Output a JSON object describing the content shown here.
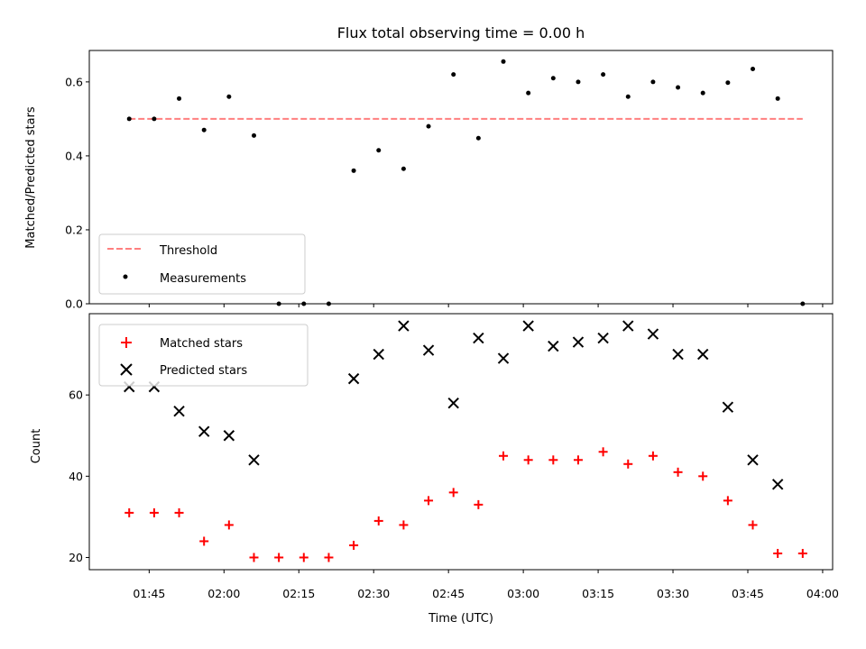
{
  "chart_data": [
    {
      "type": "scatter",
      "title": "Flux total observing time = 0.00 h",
      "xlabel": "",
      "ylabel": "Matched/Predicted stars",
      "ylim": [
        0,
        0.685
      ],
      "yticks": [
        0.0,
        0.2,
        0.4,
        0.6
      ],
      "yticklabels": [
        "0.0",
        "0.2",
        "0.4",
        "0.6"
      ],
      "x_range_minutes": [
        93,
        242
      ],
      "legend_position": "bottom-left",
      "threshold": {
        "name": "Threshold",
        "value": 0.5,
        "x_start": "01:41",
        "x_end": "03:56",
        "color": "#ff7f7f",
        "style": "dashed"
      },
      "series": [
        {
          "name": "Measurements",
          "color": "#000000",
          "marker": "dot",
          "x": [
            "01:41",
            "01:46",
            "01:51",
            "01:56",
            "02:01",
            "02:06",
            "02:11",
            "02:16",
            "02:21",
            "02:26",
            "02:31",
            "02:36",
            "02:41",
            "02:46",
            "02:51",
            "02:56",
            "03:01",
            "03:06",
            "03:11",
            "03:16",
            "03:21",
            "03:26",
            "03:31",
            "03:36",
            "03:41",
            "03:46",
            "03:51",
            "03:56"
          ],
          "values": [
            0.5,
            0.5,
            0.555,
            0.47,
            0.56,
            0.455,
            0.0,
            0.0,
            0.0,
            0.36,
            0.415,
            0.365,
            0.48,
            0.62,
            0.448,
            0.655,
            0.57,
            0.61,
            0.6,
            0.62,
            0.56,
            0.6,
            0.585,
            0.57,
            0.598,
            0.635,
            0.555,
            0.0
          ]
        }
      ]
    },
    {
      "type": "scatter",
      "title": "",
      "xlabel": "Time (UTC)",
      "ylabel": "Count",
      "ylim": [
        17,
        80
      ],
      "yticks": [
        20,
        40,
        60
      ],
      "yticklabels": [
        "20",
        "40",
        "60"
      ],
      "x_range_minutes": [
        93,
        242
      ],
      "xticklabels": [
        "01:45",
        "02:00",
        "02:15",
        "02:30",
        "02:45",
        "03:00",
        "03:15",
        "03:30",
        "03:45",
        "04:00"
      ],
      "legend_position": "top-left",
      "series": [
        {
          "name": "Matched stars",
          "color": "#ff0000",
          "marker": "plus",
          "x": [
            "01:41",
            "01:46",
            "01:51",
            "01:56",
            "02:01",
            "02:06",
            "02:11",
            "02:16",
            "02:21",
            "02:26",
            "02:31",
            "02:36",
            "02:41",
            "02:46",
            "02:51",
            "02:56",
            "03:01",
            "03:06",
            "03:11",
            "03:16",
            "03:21",
            "03:26",
            "03:31",
            "03:36",
            "03:41",
            "03:46",
            "03:51",
            "03:56"
          ],
          "values": [
            31,
            31,
            31,
            24,
            28,
            20,
            20,
            20,
            20,
            23,
            29,
            28,
            34,
            36,
            33,
            45,
            44,
            44,
            44,
            46,
            43,
            45,
            41,
            40,
            34,
            28,
            21,
            21
          ]
        },
        {
          "name": "Predicted stars",
          "color": "#000000",
          "marker": "x",
          "x": [
            "01:41",
            "01:46",
            "01:51",
            "01:56",
            "02:01",
            "02:06",
            "02:26",
            "02:31",
            "02:36",
            "02:41",
            "02:46",
            "02:51",
            "02:56",
            "03:01",
            "03:06",
            "03:11",
            "03:16",
            "03:21",
            "03:26",
            "03:31",
            "03:36",
            "03:41",
            "03:46",
            "03:51"
          ],
          "values": [
            62,
            62,
            56,
            51,
            50,
            44,
            64,
            70,
            77,
            71,
            58,
            74,
            69,
            77,
            72,
            73,
            74,
            77,
            75,
            70,
            70,
            57,
            44,
            38
          ]
        }
      ]
    }
  ]
}
